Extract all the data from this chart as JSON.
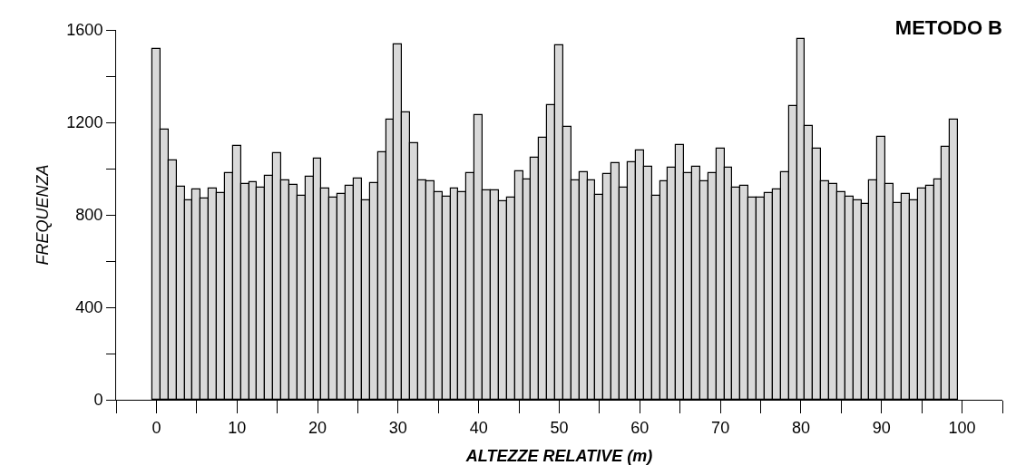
{
  "chart_data": {
    "type": "histogram",
    "title": "METODO B",
    "xlabel": "ALTEZZE RELATIVE (m)",
    "ylabel": "FREQUENZA",
    "bins": [
      -0.5,
      0.5,
      1.5,
      2.5,
      3.5,
      4.5,
      5.5,
      6.5,
      7.5,
      8.5,
      9.5,
      10.5,
      11.5,
      12.5,
      13.5,
      14.5,
      15.5,
      16.5,
      17.5,
      18.5,
      19.5,
      20.5,
      21.5,
      22.5,
      23.5,
      24.5,
      25.5,
      26.5,
      27.5,
      28.5,
      29.5,
      30.5,
      31.5,
      32.5,
      33.5,
      34.5,
      35.5,
      36.5,
      37.5,
      38.5,
      39.5,
      40.5,
      41.5,
      42.5,
      43.5,
      44.5,
      45.5,
      46.5,
      47.5,
      48.5,
      49.5,
      50.5,
      51.5,
      52.5,
      53.5,
      54.5,
      55.5,
      56.5,
      57.5,
      58.5,
      59.5,
      60.5,
      61.5,
      62.5,
      63.5,
      64.5,
      65.5,
      66.5,
      67.5,
      68.5,
      69.5,
      70.5,
      71.5,
      72.5,
      73.5,
      74.5,
      75.5,
      76.5,
      77.5,
      78.5,
      79.5,
      80.5,
      81.5,
      82.5,
      83.5,
      84.5,
      85.5,
      86.5,
      87.5,
      88.5,
      89.5,
      90.5,
      91.5,
      92.5,
      93.5,
      94.5,
      95.5,
      96.5,
      97.5,
      98.5,
      99.5
    ],
    "values": [
      1519,
      1169,
      1034,
      923,
      863,
      909,
      871,
      914,
      896,
      979,
      1100,
      934,
      943,
      918,
      969,
      1068,
      948,
      930,
      883,
      966,
      1044,
      915,
      876,
      889,
      924,
      958,
      863,
      939,
      1069,
      1211,
      1537,
      1245,
      1111,
      950,
      945,
      900,
      880,
      915,
      897,
      979,
      1231,
      904,
      904,
      860,
      874,
      990,
      954,
      1047,
      1134,
      1276,
      1535,
      1180,
      950,
      986,
      948,
      887,
      977,
      1025,
      919,
      1026,
      1080,
      1007,
      883,
      947,
      1003,
      1103,
      980,
      1008,
      944,
      982,
      1085,
      1005,
      919,
      927,
      876,
      876,
      893,
      909,
      983,
      1269,
      1561,
      1186,
      1085,
      944,
      935,
      900,
      880,
      864,
      849,
      950,
      1136,
      935,
      850,
      890,
      864,
      915,
      924,
      954,
      1093,
      1211
    ],
    "color": "#d9d9d9",
    "xlim": [
      -5,
      105
    ],
    "xticks": [
      {
        "value": -5,
        "label": null
      },
      0,
      {
        "value": 5,
        "label": null
      },
      10,
      {
        "value": 15,
        "label": null
      },
      20,
      {
        "value": 25,
        "label": null
      },
      30,
      {
        "value": 35,
        "label": null
      },
      40,
      {
        "value": 45,
        "label": null
      },
      50,
      {
        "value": 55,
        "label": null
      },
      60,
      {
        "value": 65,
        "label": null
      },
      70,
      {
        "value": 75,
        "label": null
      },
      80,
      {
        "value": 85,
        "label": null
      },
      90,
      {
        "value": 95,
        "label": null
      },
      100,
      {
        "value": 105,
        "label": null
      }
    ],
    "ylim": [
      0,
      1600
    ],
    "yticks": [
      0,
      {
        "value": 200,
        "label": null
      },
      400,
      {
        "value": 600,
        "label": null
      },
      800,
      {
        "value": 1000,
        "label": null
      },
      1200,
      {
        "value": 1400,
        "label": null
      },
      1600
    ],
    "line_style": "solid"
  }
}
